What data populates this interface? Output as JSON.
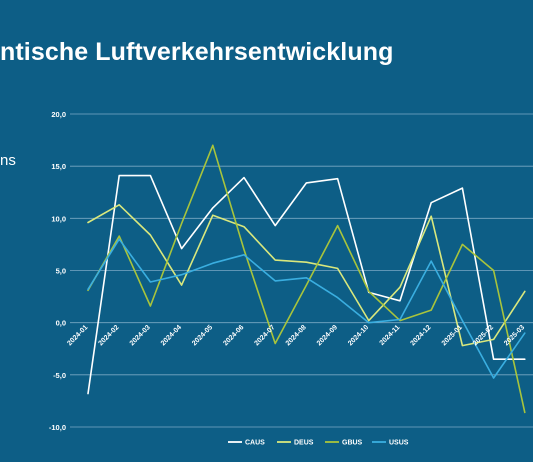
{
  "header": {
    "title": "ntische Luftverkehrsentwicklung",
    "side_text": "ns"
  },
  "chart_data": {
    "type": "line",
    "title": "",
    "xlabel": "",
    "ylabel": "",
    "ylim": [
      -10,
      20
    ],
    "y_ticks": [
      "-10,0",
      "-5,0",
      "0,0",
      "5,0",
      "10,0",
      "15,0",
      "20,0"
    ],
    "grid": true,
    "legend_position": "bottom",
    "categories": [
      "2024-01",
      "2024-02",
      "2024-03",
      "2024-04",
      "2024-05",
      "2024-06",
      "2024-07",
      "2024-08",
      "2024-09",
      "2024-10",
      "2024-11",
      "2024-12",
      "2025-01",
      "2025-02",
      "2025-03"
    ],
    "series": [
      {
        "name": "CAUS",
        "color": "#ffffff",
        "values": [
          -6.8,
          14.1,
          14.1,
          7.1,
          11.0,
          13.9,
          9.3,
          13.4,
          13.8,
          2.9,
          2.1,
          11.5,
          12.9,
          -3.5,
          -3.5
        ]
      },
      {
        "name": "DEUS",
        "color": "#d9e87d",
        "values": [
          9.6,
          11.3,
          8.4,
          3.6,
          10.3,
          9.2,
          6.0,
          5.8,
          5.2,
          0.2,
          3.4,
          10.2,
          -2.2,
          -1.6,
          3.0
        ]
      },
      {
        "name": "GBUS",
        "color": "#a8c43c",
        "values": [
          3.1,
          8.3,
          1.6,
          9.5,
          17.0,
          7.0,
          -2.0,
          3.6,
          9.3,
          3.0,
          0.2,
          1.2,
          7.5,
          5.0,
          -8.6
        ]
      },
      {
        "name": "USUS",
        "color": "#3aaee0",
        "values": [
          3.2,
          8.0,
          3.9,
          4.6,
          5.7,
          6.5,
          4.0,
          4.3,
          2.4,
          0.0,
          0.3,
          5.9,
          0.2,
          -5.3,
          -1.0
        ]
      }
    ]
  }
}
